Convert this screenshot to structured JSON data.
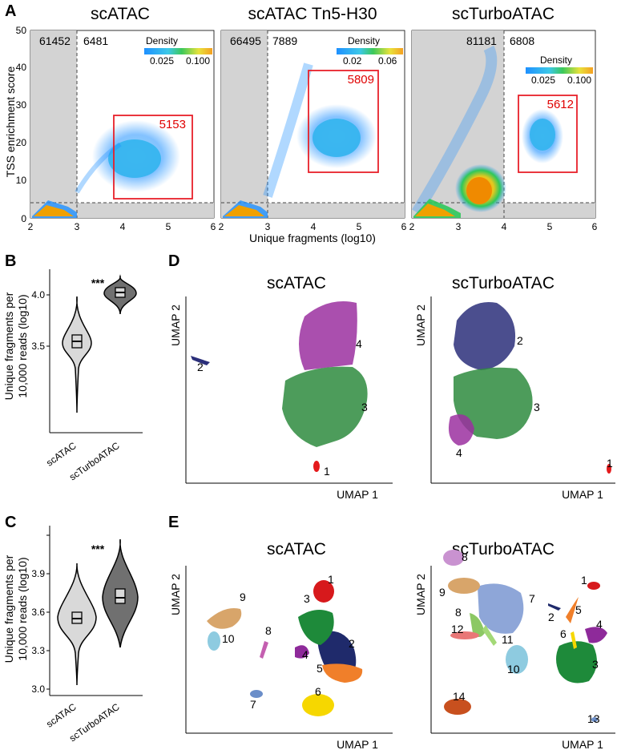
{
  "panels": {
    "A": "A",
    "B": "B",
    "C": "C",
    "D": "D",
    "E": "E"
  },
  "panelA": {
    "y_label": "TSS enrichment score",
    "x_label": "Unique fragments (log10)",
    "x_ticks": [
      "2",
      "3",
      "4",
      "5",
      "6"
    ],
    "y_ticks": [
      "0",
      "10",
      "20",
      "30",
      "40",
      "50"
    ],
    "legend_title": "Density",
    "plots": [
      {
        "title": "scATAC",
        "left_count": "61452",
        "right_count": "6481",
        "box_count": "5153",
        "legend_ticks": [
          "0.025",
          "0.100"
        ]
      },
      {
        "title": "scATAC Tn5-H30",
        "left_count": "66495",
        "right_count": "7889",
        "box_count": "5809",
        "legend_ticks": [
          "0.02",
          "0.06"
        ]
      },
      {
        "title": "scTurboATAC",
        "left_count": "81181",
        "right_count": "6808",
        "box_count": "5612",
        "legend_ticks": [
          "0.025",
          "0.100"
        ]
      }
    ],
    "colors": {
      "shade": "#d3d3d3",
      "box": "#e8202a"
    }
  },
  "panelB": {
    "y_label_line1": "Unique fragments per",
    "y_label_line2": "10,000 reads (log10)",
    "y_ticks": [
      "3.5",
      "4.0"
    ],
    "categories": [
      "scATAC",
      "scTurboATAC"
    ],
    "significance": "***",
    "colors": {
      "scATAC": "#d9d9d9",
      "scTurboATAC": "#707070"
    }
  },
  "panelC": {
    "y_label_line1": "Unique fragments per",
    "y_label_line2": "10,000 reads (log10)",
    "y_ticks": [
      "3.0",
      "3.3",
      "3.6",
      "3.9"
    ],
    "categories": [
      "scATAC",
      "scTurboATAC"
    ],
    "significance": "***"
  },
  "panelD": {
    "x_label": "UMAP 1",
    "y_label": "UMAP 2",
    "plots": [
      {
        "title": "scATAC",
        "clusters": [
          {
            "label": "1",
            "color": "#e41a1c"
          },
          {
            "label": "2",
            "color": "#2b2f7a"
          },
          {
            "label": "3",
            "color": "#2e8b3e"
          },
          {
            "label": "4",
            "color": "#9b30a0"
          }
        ]
      },
      {
        "title": "scTurboATAC",
        "clusters": [
          {
            "label": "1",
            "color": "#e41a1c"
          },
          {
            "label": "2",
            "color": "#2b2f7a"
          },
          {
            "label": "3",
            "color": "#2e8b3e"
          },
          {
            "label": "4",
            "color": "#9b30a0"
          }
        ]
      }
    ]
  },
  "panelE": {
    "x_label": "UMAP 1",
    "y_label": "UMAP 2",
    "plots": [
      {
        "title": "scATAC",
        "clusters": [
          {
            "label": "1",
            "color": "#d7191c"
          },
          {
            "label": "2",
            "color": "#1f2a6b"
          },
          {
            "label": "3",
            "color": "#1e8a3a"
          },
          {
            "label": "4",
            "color": "#8e2a9a"
          },
          {
            "label": "5",
            "color": "#f07f2a"
          },
          {
            "label": "6",
            "color": "#f6d700"
          },
          {
            "label": "7",
            "color": "#6b8ec9"
          },
          {
            "label": "8",
            "color": "#c45fb0"
          },
          {
            "label": "9",
            "color": "#d8a56a"
          },
          {
            "label": "10",
            "color": "#8ecbe0"
          }
        ]
      },
      {
        "title": "scTurboATAC",
        "clusters": [
          {
            "label": "1",
            "color": "#d7191c"
          },
          {
            "label": "2",
            "color": "#1f2a6b"
          },
          {
            "label": "3",
            "color": "#1e8a3a"
          },
          {
            "label": "4",
            "color": "#8e2a9a"
          },
          {
            "label": "5",
            "color": "#f07f2a"
          },
          {
            "label": "6",
            "color": "#f6d700"
          },
          {
            "label": "7",
            "color": "#8ea6d8"
          },
          {
            "label": "8",
            "color": "#c992d0"
          },
          {
            "label": "8",
            "color": "#8cc864"
          },
          {
            "label": "9",
            "color": "#d8a56a"
          },
          {
            "label": "10",
            "color": "#8ecbe0"
          },
          {
            "label": "11",
            "color": "#a3d977"
          },
          {
            "label": "12",
            "color": "#e97777"
          },
          {
            "label": "13",
            "color": "#6b8ec9"
          },
          {
            "label": "14",
            "color": "#c8501e"
          }
        ]
      }
    ]
  }
}
